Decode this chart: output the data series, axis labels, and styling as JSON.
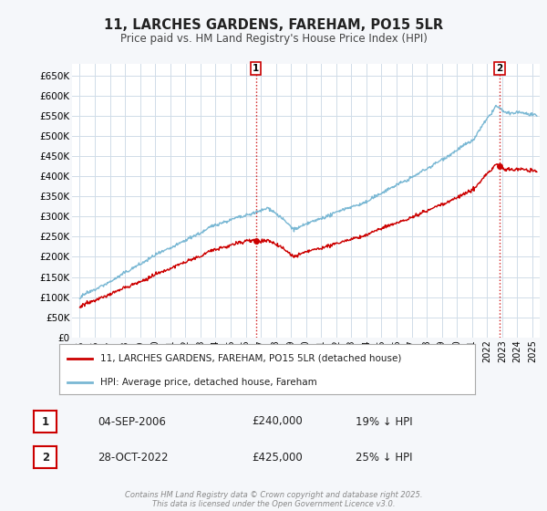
{
  "title": "11, LARCHES GARDENS, FAREHAM, PO15 5LR",
  "subtitle": "Price paid vs. HM Land Registry's House Price Index (HPI)",
  "line1_label": "11, LARCHES GARDENS, FAREHAM, PO15 5LR (detached house)",
  "line2_label": "HPI: Average price, detached house, Fareham",
  "annotation1": {
    "num": "1",
    "date": "04-SEP-2006",
    "price": "£240,000",
    "pct": "19% ↓ HPI",
    "year": 2006.67
  },
  "annotation2": {
    "num": "2",
    "date": "28-OCT-2022",
    "price": "£425,000",
    "pct": "25% ↓ HPI",
    "year": 2022.83
  },
  "ylim": [
    0,
    680000
  ],
  "xlim": [
    1994.5,
    2025.5
  ],
  "yticks": [
    0,
    50000,
    100000,
    150000,
    200000,
    250000,
    300000,
    350000,
    400000,
    450000,
    500000,
    550000,
    600000,
    650000
  ],
  "ytick_labels": [
    "£0",
    "£50K",
    "£100K",
    "£150K",
    "£200K",
    "£250K",
    "£300K",
    "£350K",
    "£400K",
    "£450K",
    "£500K",
    "£550K",
    "£600K",
    "£650K"
  ],
  "hpi_color": "#7ab8d4",
  "prop_color": "#cc0000",
  "vline_color": "#cc0000",
  "grid_color": "#d0dce8",
  "background_color": "#f5f7fa",
  "plot_bg_color": "#ffffff",
  "footer": "Contains HM Land Registry data © Crown copyright and database right 2025.\nThis data is licensed under the Open Government Licence v3.0.",
  "sale1_year": 2006.67,
  "sale1_price": 240000,
  "sale2_year": 2022.83,
  "sale2_price": 425000
}
